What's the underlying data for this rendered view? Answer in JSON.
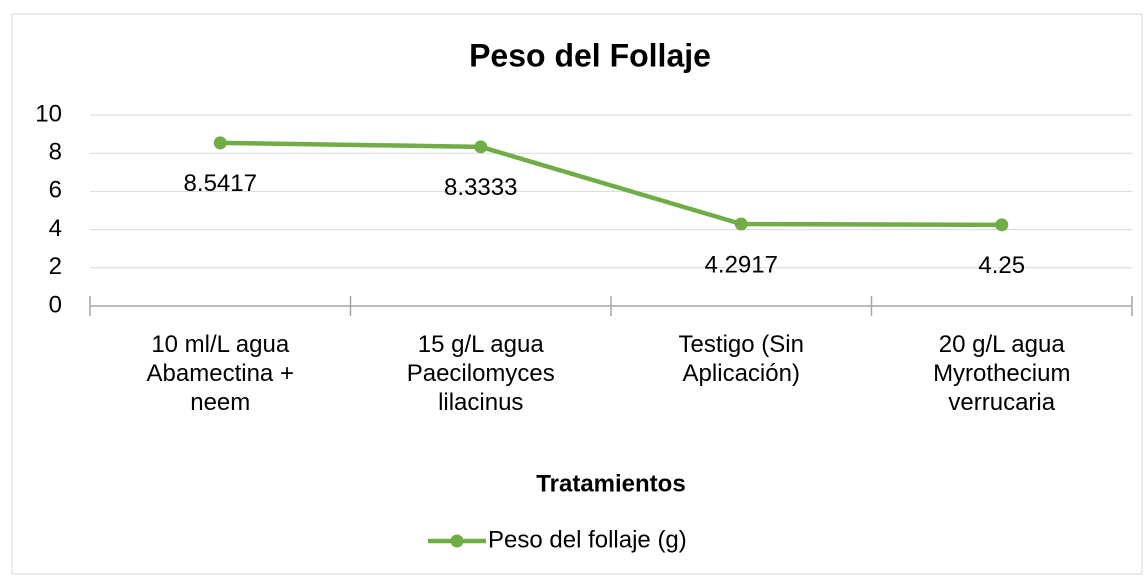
{
  "chart_data": {
    "type": "line",
    "title": "Peso del Follaje",
    "x_label": "Tratamientos",
    "categories": [
      "10 ml/L agua Abamectina + neem",
      "15 g/L agua Paecilomyces lilacinus",
      "Testigo (Sin Aplicación)",
      "20 g/L agua Myrothecium verrucaria"
    ],
    "series": [
      {
        "name": "Peso del follaje (g)",
        "color": "#70ad47",
        "values": [
          8.5417,
          8.3333,
          4.2917,
          4.25
        ]
      }
    ],
    "ylim": [
      0,
      10
    ],
    "yticks": [
      0,
      2,
      4,
      6,
      8,
      10
    ],
    "grid": true,
    "legend": "bottom"
  }
}
